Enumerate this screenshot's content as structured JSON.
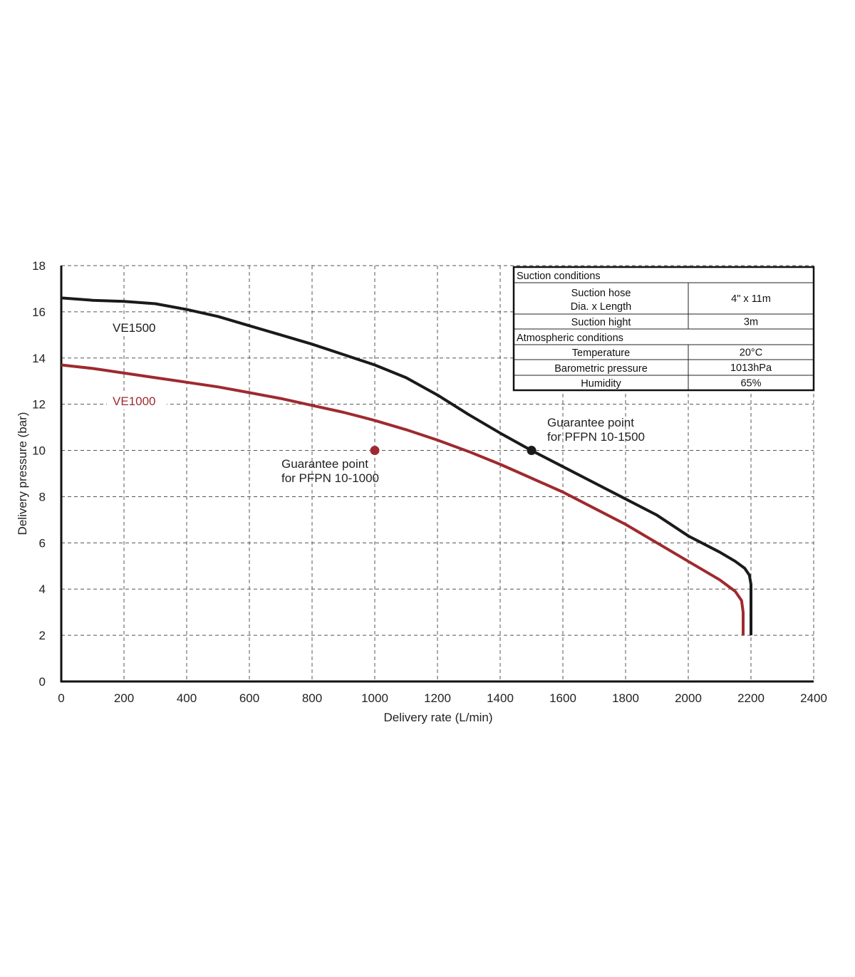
{
  "chart_data": {
    "type": "line",
    "title": "",
    "xlabel": "Delivery rate (L/min)",
    "ylabel": "Delivery pressure (bar)",
    "xlim": [
      0,
      2400
    ],
    "ylim": [
      0,
      18
    ],
    "x_ticks": [
      "0",
      "200",
      "400",
      "600",
      "800",
      "1000",
      "1200",
      "1400",
      "1600",
      "1800",
      "2000",
      "2200",
      "2400"
    ],
    "y_ticks": [
      "0",
      "2",
      "4",
      "6",
      "8",
      "10",
      "12",
      "14",
      "16",
      "18"
    ],
    "grid": true,
    "grid_style": "dashed",
    "series": [
      {
        "name": "VE1500",
        "color": "#1a1a1a",
        "x": [
          0,
          100,
          200,
          300,
          400,
          500,
          600,
          700,
          800,
          900,
          1000,
          1100,
          1200,
          1300,
          1400,
          1500,
          1600,
          1700,
          1800,
          1900,
          2000,
          2100,
          2150,
          2180,
          2195,
          2200,
          2200
        ],
        "y": [
          16.6,
          16.5,
          16.45,
          16.35,
          16.1,
          15.8,
          15.4,
          15.0,
          14.6,
          14.15,
          13.7,
          13.15,
          12.4,
          11.55,
          10.75,
          10.0,
          9.3,
          8.6,
          7.9,
          7.2,
          6.3,
          5.6,
          5.2,
          4.9,
          4.6,
          4.2,
          2.0
        ]
      },
      {
        "name": "VE1000",
        "color": "#9e2a2f",
        "x": [
          0,
          100,
          200,
          300,
          400,
          500,
          600,
          700,
          800,
          900,
          1000,
          1100,
          1200,
          1300,
          1400,
          1500,
          1600,
          1700,
          1800,
          1900,
          2000,
          2100,
          2150,
          2170,
          2175,
          2175
        ],
        "y": [
          13.7,
          13.55,
          13.35,
          13.15,
          12.95,
          12.75,
          12.5,
          12.25,
          11.95,
          11.65,
          11.3,
          10.9,
          10.45,
          9.95,
          9.4,
          8.8,
          8.2,
          7.5,
          6.8,
          6.0,
          5.2,
          4.4,
          3.9,
          3.5,
          3.0,
          2.0
        ]
      }
    ],
    "series_labels": [
      "VE1500",
      "VE1000"
    ],
    "points": [
      {
        "x": 1000,
        "y": 10,
        "color": "#9e2a2f",
        "label_lines": [
          "Guarantee point",
          "for PFPN 10-1000"
        ]
      },
      {
        "x": 1500,
        "y": 10,
        "color": "#1a1a1a",
        "label_lines": [
          "Guarantee point",
          "for PFPN 10-1500"
        ]
      }
    ]
  },
  "table": {
    "rows": [
      {
        "kind": "header",
        "text": "Suction conditions"
      },
      {
        "kind": "pair",
        "label_lines": [
          "Suction hose",
          "Dia. x Length"
        ],
        "value": "4\" x 11m"
      },
      {
        "kind": "pair",
        "label_lines": [
          "Suction hight"
        ],
        "value": "3m"
      },
      {
        "kind": "header",
        "text": "Atmospheric conditions"
      },
      {
        "kind": "pair",
        "label_lines": [
          "Temperature"
        ],
        "value": "20°C"
      },
      {
        "kind": "pair",
        "label_lines": [
          "Barometric pressure"
        ],
        "value": "1013hPa"
      },
      {
        "kind": "pair",
        "label_lines": [
          "Humidity"
        ],
        "value": "65%"
      }
    ]
  }
}
